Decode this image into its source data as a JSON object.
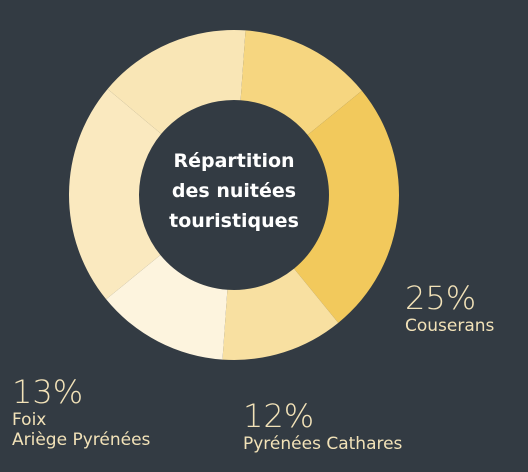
{
  "chart_data": {
    "type": "donut",
    "title": "Répartition\ndes nuitées\ntouristiques",
    "categories": [
      null,
      "Couserans",
      "Pyrénées Cathares",
      "Foix\nAriège Pyrénées",
      null,
      null
    ],
    "values": [
      13,
      25,
      12,
      13,
      22,
      15
    ],
    "value_labels": [
      null,
      "25%",
      "12%",
      "13%",
      null,
      null
    ],
    "colors": [
      "#f6d680",
      "#f2c95c",
      "#f8e0a1",
      "#fdf4de",
      "#fae9bf",
      "#f9e6b6"
    ]
  }
}
